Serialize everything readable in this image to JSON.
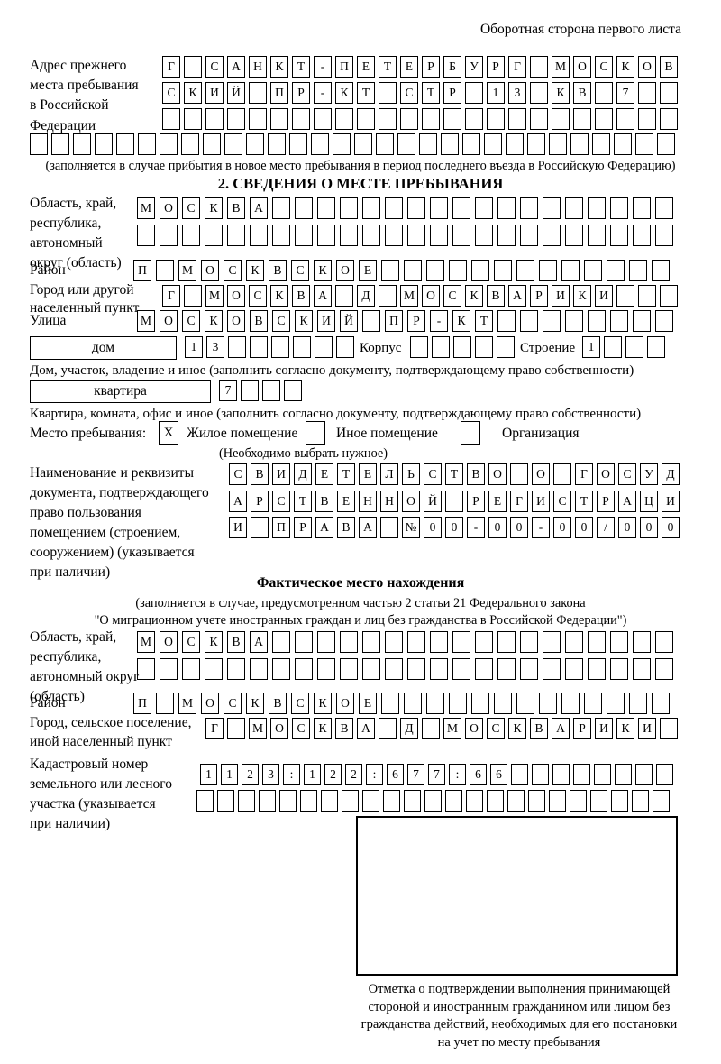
{
  "header": {
    "page_side_note": "Оборотная сторона первого листа"
  },
  "prev_address": {
    "label_lines": [
      "Адрес прежнего",
      "места пребывания",
      "в Российской",
      "Федерации"
    ],
    "rows": [
      [
        "Г",
        "",
        "С",
        "А",
        "Н",
        "К",
        "Т",
        "-",
        "П",
        "Е",
        "Т",
        "Е",
        "Р",
        "Б",
        "У",
        "Р",
        "Г",
        "",
        "М",
        "О",
        "С",
        "К",
        "О",
        "В"
      ],
      [
        "С",
        "К",
        "И",
        "Й",
        "",
        "П",
        "Р",
        "-",
        "К",
        "Т",
        "",
        "С",
        "Т",
        "Р",
        "",
        "1",
        "3",
        "",
        "К",
        "В",
        "",
        "7",
        "",
        ""
      ],
      [
        "",
        "",
        "",
        "",
        "",
        "",
        "",
        "",
        "",
        "",
        "",
        "",
        "",
        "",
        "",
        "",
        "",
        "",
        "",
        "",
        "",
        "",
        "",
        ""
      ],
      [
        "",
        "",
        "",
        "",
        "",
        "",
        "",
        "",
        "",
        "",
        "",
        "",
        "",
        "",
        "",
        "",
        "",
        "",
        "",
        "",
        "",
        "",
        "",
        "",
        "",
        "",
        "",
        "",
        "",
        ""
      ]
    ],
    "note": "(заполняется в случае прибытия в новое место пребывания в период последнего въезда в Российскую Федерацию)"
  },
  "section2": {
    "title": "2. СВЕДЕНИЯ О МЕСТЕ ПРЕБЫВАНИЯ",
    "region": {
      "label_lines": [
        "Область, край,",
        "республика,",
        "автономный",
        "округ (область)"
      ],
      "rows": [
        [
          "М",
          "О",
          "С",
          "К",
          "В",
          "А",
          "",
          "",
          "",
          "",
          "",
          "",
          "",
          "",
          "",
          "",
          "",
          "",
          "",
          "",
          "",
          "",
          "",
          ""
        ],
        [
          "",
          "",
          "",
          "",
          "",
          "",
          "",
          "",
          "",
          "",
          "",
          "",
          "",
          "",
          "",
          "",
          "",
          "",
          "",
          "",
          "",
          "",
          "",
          ""
        ]
      ]
    },
    "district": {
      "label": "Район",
      "row": [
        "П",
        "",
        "М",
        "О",
        "С",
        "К",
        "В",
        "С",
        "К",
        "О",
        "Е",
        "",
        "",
        "",
        "",
        "",
        "",
        "",
        "",
        "",
        "",
        "",
        "",
        ""
      ]
    },
    "city": {
      "label_lines": [
        "Город или другой",
        "населенный пункт"
      ],
      "row": [
        "Г",
        "",
        "М",
        "О",
        "С",
        "К",
        "В",
        "А",
        "",
        "Д",
        "",
        "М",
        "О",
        "С",
        "К",
        "В",
        "А",
        "Р",
        "И",
        "К",
        "И",
        "",
        "",
        ""
      ]
    },
    "street": {
      "label": "Улица",
      "row": [
        "М",
        "О",
        "С",
        "К",
        "О",
        "В",
        "С",
        "К",
        "И",
        "Й",
        "",
        "П",
        "Р",
        "-",
        "К",
        "Т",
        "",
        "",
        "",
        "",
        "",
        "",
        "",
        ""
      ]
    },
    "house": {
      "box_label": "дом",
      "cells": [
        "1",
        "3",
        "",
        "",
        "",
        "",
        "",
        ""
      ],
      "korpus_label": "Корпус",
      "korpus_cells": [
        "",
        "",
        "",
        "",
        ""
      ],
      "stroenie_label": "Строение",
      "stroenie_cells": [
        "1",
        "",
        "",
        ""
      ],
      "caption": "Дом, участок, владение и иное (заполнить согласно документу, подтверждающему право собственности)"
    },
    "apartment": {
      "box_label": "квартира",
      "cells": [
        "7",
        "",
        "",
        ""
      ],
      "caption": "Квартира, комната, офис и иное (заполнить согласно документу, подтверждающему право собственности)"
    },
    "residence_type": {
      "label": "Место пребывания:",
      "options": [
        {
          "label": "Жилое помещение",
          "mark": "X"
        },
        {
          "label": "Иное помещение",
          "mark": ""
        },
        {
          "label": "Организация",
          "mark": ""
        }
      ],
      "note": "(Необходимо выбрать нужное)"
    },
    "document": {
      "label_lines": [
        "Наименование и реквизиты",
        "документа, подтверждающего",
        "право пользования",
        "помещением (строением,",
        "сооружением) (указывается",
        "при наличии)"
      ],
      "rows": [
        [
          "С",
          "В",
          "И",
          "Д",
          "Е",
          "Т",
          "Е",
          "Л",
          "Ь",
          "С",
          "Т",
          "В",
          "О",
          "",
          "О",
          "",
          "Г",
          "О",
          "С",
          "У",
          "Д"
        ],
        [
          "А",
          "Р",
          "С",
          "Т",
          "В",
          "Е",
          "Н",
          "Н",
          "О",
          "Й",
          "",
          "Р",
          "Е",
          "Г",
          "И",
          "С",
          "Т",
          "Р",
          "А",
          "Ц",
          "И"
        ],
        [
          "И",
          "",
          "П",
          "Р",
          "А",
          "В",
          "А",
          "",
          "№",
          "0",
          "0",
          "-",
          "0",
          "0",
          "-",
          "0",
          "0",
          "/",
          "0",
          "0",
          "0"
        ]
      ]
    }
  },
  "actual_location": {
    "title": "Фактическое место нахождения",
    "note_lines": [
      "(заполняется в случае, предусмотренном частью 2 статьи 21 Федерального закона",
      "\"О миграционном учете иностранных граждан и лиц без гражданства в Российской Федерации\")"
    ],
    "region": {
      "label_lines": [
        "Область, край,",
        "республика,",
        "автономный округ",
        "(область)"
      ],
      "rows": [
        [
          "М",
          "О",
          "С",
          "К",
          "В",
          "А",
          "",
          "",
          "",
          "",
          "",
          "",
          "",
          "",
          "",
          "",
          "",
          "",
          "",
          "",
          "",
          "",
          "",
          ""
        ],
        [
          "",
          "",
          "",
          "",
          "",
          "",
          "",
          "",
          "",
          "",
          "",
          "",
          "",
          "",
          "",
          "",
          "",
          "",
          "",
          "",
          "",
          "",
          "",
          ""
        ]
      ]
    },
    "district": {
      "label": "Район",
      "row": [
        "П",
        "",
        "М",
        "О",
        "С",
        "К",
        "В",
        "С",
        "К",
        "О",
        "Е",
        "",
        "",
        "",
        "",
        "",
        "",
        "",
        "",
        "",
        "",
        "",
        "",
        ""
      ]
    },
    "city": {
      "label_lines": [
        "Город, сельское поселение,",
        "иной населенный пункт"
      ],
      "row": [
        "Г",
        "",
        "М",
        "О",
        "С",
        "К",
        "В",
        "А",
        "",
        "Д",
        "",
        "М",
        "О",
        "С",
        "К",
        "В",
        "А",
        "Р",
        "И",
        "К",
        "И",
        ""
      ]
    },
    "cadastral": {
      "label_lines": [
        "Кадастровый номер",
        "земельного или лесного",
        "участка (указывается",
        "при наличии)"
      ],
      "rows": [
        [
          "1",
          "1",
          "2",
          "3",
          ":",
          "1",
          "2",
          "2",
          ":",
          "6",
          "7",
          "7",
          ":",
          "6",
          "6",
          "",
          "",
          "",
          "",
          "",
          "",
          "",
          ""
        ],
        [
          "",
          "",
          "",
          "",
          "",
          "",
          "",
          "",
          "",
          "",
          "",
          "",
          "",
          "",
          "",
          "",
          "",
          "",
          "",
          "",
          "",
          "",
          ""
        ]
      ]
    }
  },
  "stamp": {
    "caption_lines": [
      "Отметка о подтверждении выполнения принимающей",
      "стороной и иностранным гражданином или лицом без",
      "гражданства действий, необходимых для его постановки",
      "на учет по месту пребывания"
    ]
  }
}
